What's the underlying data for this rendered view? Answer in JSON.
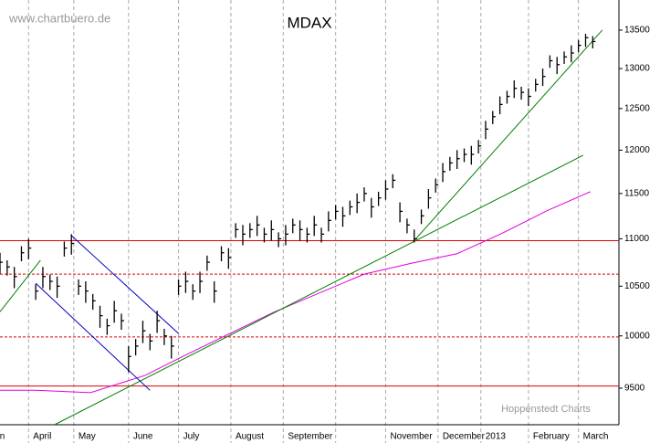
{
  "chart_data": {
    "type": "ohlc",
    "title": "MDAX",
    "watermark": "www.chartbuero.de",
    "source": "Hoppenstedt Charts",
    "log_scale": true,
    "color": "#000000",
    "xlim": [
      0,
      260
    ],
    "ylim": [
      9165,
      13905
    ],
    "yticks": [
      9500,
      10000,
      10500,
      11000,
      11500,
      12000,
      12500,
      13000,
      13500
    ],
    "xticks": [
      {
        "value": -2,
        "label": "n"
      },
      {
        "value": 12,
        "label": "April"
      },
      {
        "value": 31,
        "label": "May"
      },
      {
        "value": 54,
        "label": "June"
      },
      {
        "value": 75,
        "label": "July"
      },
      {
        "value": 97,
        "label": "August"
      },
      {
        "value": 119,
        "label": "September"
      },
      {
        "value": 141,
        "label": null
      },
      {
        "value": 162,
        "label": "November"
      },
      {
        "value": 184,
        "label": "December"
      },
      {
        "value": 202,
        "label": "2013"
      },
      {
        "value": 222,
        "label": "February"
      },
      {
        "value": 243,
        "label": "March"
      }
    ],
    "x": [
      0,
      3,
      6,
      9,
      12,
      15,
      18,
      21,
      24,
      27,
      30,
      33,
      36,
      39,
      42,
      45,
      48,
      51,
      54,
      57,
      60,
      63,
      66,
      69,
      72,
      75,
      78,
      81,
      84,
      87,
      90,
      93,
      96,
      99,
      102,
      105,
      108,
      111,
      114,
      117,
      120,
      123,
      126,
      129,
      132,
      135,
      138,
      141,
      144,
      147,
      150,
      153,
      156,
      159,
      162,
      165,
      168,
      171,
      174,
      177,
      180,
      183,
      186,
      189,
      192,
      195,
      198,
      201,
      204,
      207,
      210,
      213,
      216,
      219,
      222,
      225,
      228,
      231,
      234,
      237,
      240,
      243,
      246,
      249
    ],
    "high": [
      10850,
      10770,
      10700,
      10920,
      11000,
      10520,
      10700,
      10620,
      10600,
      10970,
      11050,
      10570,
      10550,
      10420,
      10300,
      10170,
      10350,
      10220,
      9900,
      9970,
      10150,
      10020,
      10250,
      10070,
      10000,
      10570,
      10650,
      10520,
      10650,
      10820,
      10550,
      10920,
      10900,
      11170,
      11150,
      11170,
      11250,
      11120,
      11200,
      11070,
      11150,
      11220,
      11200,
      11120,
      11250,
      11120,
      11300,
      11370,
      11350,
      11420,
      11500,
      11570,
      11450,
      11520,
      11650,
      11720,
      11400,
      11220,
      11100,
      11320,
      11550,
      11670,
      11850,
      11920,
      12000,
      12020,
      12050,
      12120,
      12350,
      12470,
      12650,
      12720,
      12850,
      12770,
      12750,
      12870,
      13000,
      13170,
      13150,
      13220,
      13300,
      13370,
      13450,
      13420
    ],
    "low": [
      10630,
      10610,
      10480,
      10760,
      10780,
      10360,
      10480,
      10460,
      10380,
      10810,
      10830,
      10410,
      10330,
      10260,
      10080,
      10010,
      10130,
      10060,
      9650,
      9810,
      9930,
      9860,
      10030,
      9910,
      9780,
      10410,
      10430,
      10360,
      10430,
      10660,
      10330,
      10760,
      10680,
      11010,
      10930,
      11010,
      11030,
      10960,
      10980,
      10910,
      10930,
      11060,
      10980,
      10960,
      11030,
      10960,
      11080,
      11210,
      11130,
      11260,
      11280,
      11410,
      11230,
      11360,
      11430,
      11560,
      11180,
      11060,
      10960,
      11160,
      11330,
      11510,
      11630,
      11760,
      11780,
      11860,
      11830,
      11960,
      12130,
      12310,
      12430,
      12560,
      12630,
      12610,
      12530,
      12710,
      12780,
      13010,
      12930,
      13060,
      13080,
      13210,
      13280,
      13260
    ],
    "close": [
      10750,
      10700,
      10600,
      10850,
      10900,
      10450,
      10600,
      10550,
      10500,
      10900,
      10950,
      10500,
      10450,
      10350,
      10200,
      10100,
      10250,
      10150,
      9800,
      9900,
      10050,
      9950,
      10150,
      10000,
      9900,
      10500,
      10550,
      10450,
      10550,
      10750,
      10450,
      10850,
      10800,
      11100,
      11050,
      11100,
      11150,
      11050,
      11100,
      11000,
      11050,
      11150,
      11100,
      11050,
      11150,
      11050,
      11200,
      11300,
      11250,
      11350,
      11400,
      11500,
      11350,
      11450,
      11550,
      11650,
      11300,
      11150,
      11000,
      11250,
      11450,
      11600,
      11750,
      11850,
      11900,
      11950,
      11950,
      12050,
      12250,
      12400,
      12550,
      12650,
      12750,
      12700,
      12650,
      12800,
      12900,
      13100,
      13050,
      13150,
      13200,
      13300,
      13400,
      13350
    ],
    "hlines": [
      {
        "value": 10980,
        "color": "#e00000",
        "style": "solid"
      },
      {
        "value": 10625,
        "color": "#e00000",
        "style": "dashed"
      },
      {
        "value": 9990,
        "color": "#e00000",
        "style": "dashed"
      },
      {
        "value": 9520,
        "color": "#e00000",
        "style": "solid"
      }
    ],
    "lines": [
      {
        "color": "#e000e0",
        "x": [
          0,
          15,
          38,
          61,
          77,
          115,
          153,
          173,
          192,
          211,
          230,
          248
        ],
        "values": [
          9480,
          9480,
          9458,
          9620,
          9803,
          10235,
          10625,
          10740,
          10840,
          11060,
          11310,
          11520
        ]
      },
      {
        "color": "#008000",
        "x": [
          23,
          245
        ],
        "values": [
          9166,
          11940
        ]
      },
      {
        "color": "#008000",
        "x": [
          174,
          253
        ],
        "values": [
          10980,
          13500
        ]
      },
      {
        "color": "#008000",
        "x": [
          0,
          17
        ],
        "values": [
          10240,
          10770
        ]
      },
      {
        "color": "#0000c0",
        "x": [
          30,
          75
        ],
        "values": [
          11035,
          10023
        ]
      },
      {
        "color": "#0000c0",
        "x": [
          15,
          63
        ],
        "values": [
          10530,
          9480
        ]
      }
    ]
  }
}
